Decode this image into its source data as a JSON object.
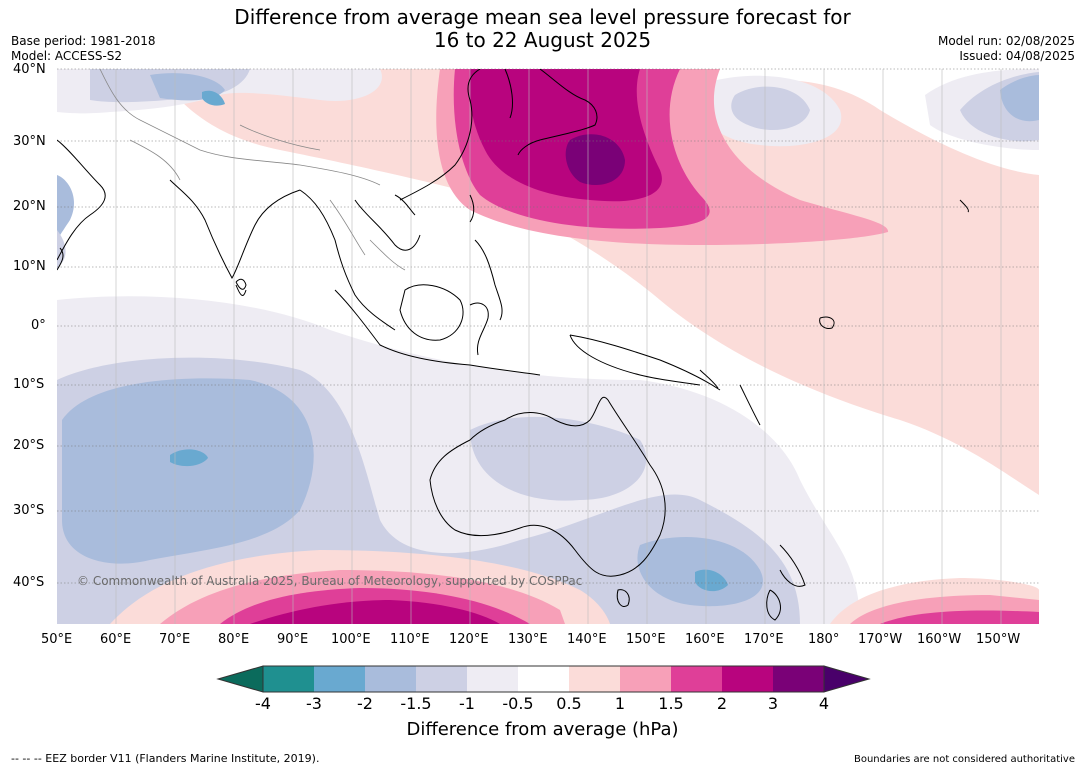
{
  "header": {
    "title_line1": "Difference from average mean sea level pressure forecast for",
    "title_line2": "16 to 22 August 2025",
    "base_period": "Base period: 1981-2018",
    "model": "Model: ACCESS-S2",
    "model_run": "Model run: 02/08/2025",
    "issued": "Issued: 04/08/2025"
  },
  "map": {
    "lat_labels": [
      "40°N",
      "30°N",
      "20°N",
      "10°N",
      "0°",
      "10°S",
      "20°S",
      "30°S",
      "40°S"
    ],
    "lon_labels": [
      "50°E",
      "60°E",
      "70°E",
      "80°E",
      "90°E",
      "100°E",
      "110°E",
      "120°E",
      "130°E",
      "140°E",
      "150°E",
      "160°E",
      "170°E",
      "180°",
      "170°W",
      "160°W",
      "150°W"
    ],
    "copyright": "© Commonwealth of Australia 2025, Bureau of Meteorology, supported by COSPPac"
  },
  "colorbar": {
    "ticks": [
      "-4",
      "-3",
      "-2",
      "-1.5",
      "-1",
      "-0.5",
      "0.5",
      "1",
      "1.5",
      "2",
      "3",
      "4"
    ],
    "colors": {
      "below": "#0b6b5c",
      "c1": "#1f9090",
      "c2": "#69a9d0",
      "c3": "#a9bcdc",
      "c4": "#cdd0e4",
      "c5": "#eeecf3",
      "c6": "#ffffff",
      "c7": "#fbdcd9",
      "c8": "#f7a0b8",
      "c9": "#df3f98",
      "c10": "#b8047e",
      "c11": "#7a0177",
      "above": "#49006a"
    },
    "label": "Difference from average (hPa)"
  },
  "footer": {
    "eez": "--  --  -- EEZ border V11 (Flanders Marine Institute, 2019).",
    "boundaries": "Boundaries are not considered authoritative"
  }
}
